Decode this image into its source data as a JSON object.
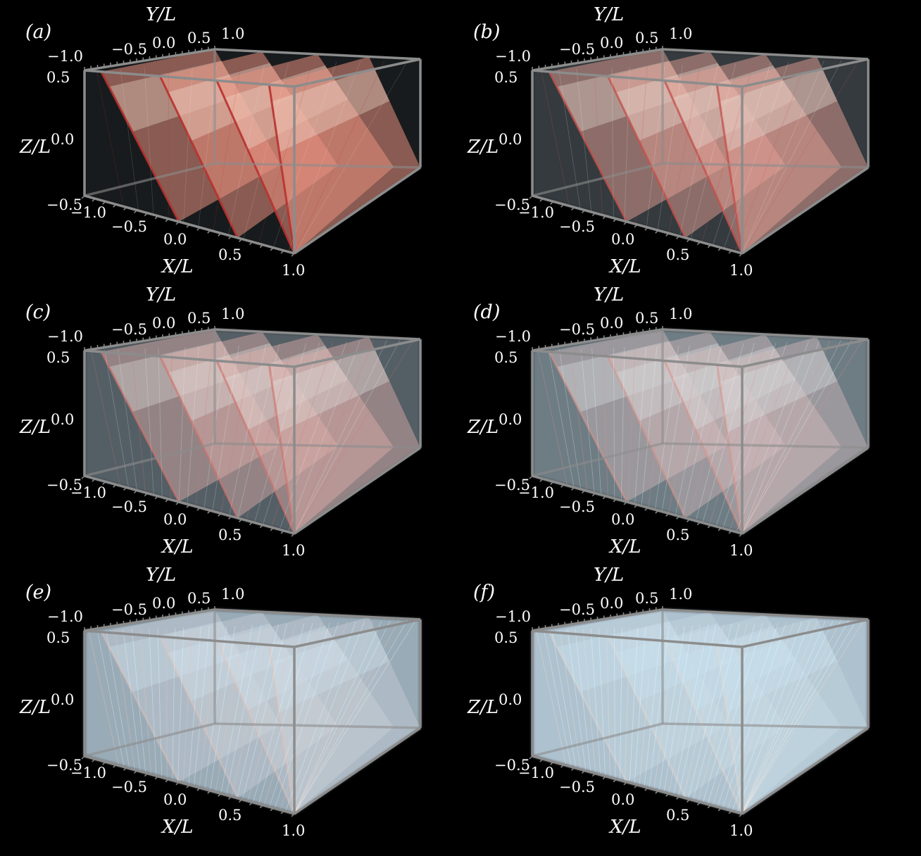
{
  "panels": [
    {
      "id": "a",
      "label": "(a)",
      "mix": 0.0
    },
    {
      "id": "b",
      "label": "(b)",
      "mix": 0.18
    },
    {
      "id": "c",
      "label": "(c)",
      "mix": 0.38
    },
    {
      "id": "d",
      "label": "(d)",
      "mix": 0.55
    },
    {
      "id": "e",
      "label": "(e)",
      "mix": 0.82
    },
    {
      "id": "f",
      "label": "(f)",
      "mix": 0.95
    }
  ],
  "axes": {
    "x_label": "X/L",
    "y_label": "Y/L",
    "z_label": "Z/L",
    "x_ticks": [
      "−1.0",
      "−0.5",
      "0.0",
      "0.5",
      "1.0"
    ],
    "y_ticks": [
      "−1.0",
      "−0.5",
      "0.0",
      "0.5",
      "1.0"
    ],
    "z_ticks": [
      "0.5",
      "0.0",
      "−0.5"
    ]
  },
  "colors": {
    "background": "#000000",
    "box_edges": "#8c8c8c",
    "sheet_red": "#e8907e",
    "sheet_dark_red": "#b8322f",
    "sheet_blue": "#c9e1f0",
    "sheet_cream": "#f3e2d4",
    "text": "#ffffff"
  }
}
